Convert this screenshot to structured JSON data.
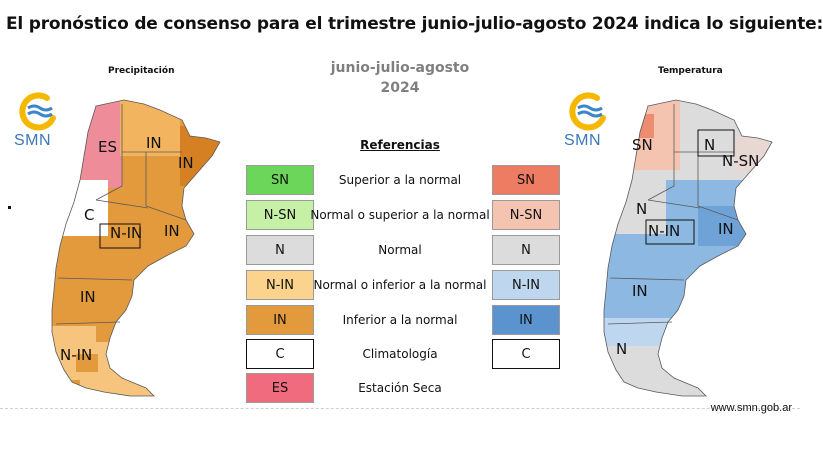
{
  "headline": "El pronóstico de consenso para el trimestre junio-julio-agosto 2024 indica lo siguiente:",
  "left_map": {
    "title": "Precipitación",
    "logo_text": "SMN",
    "labels": [
      "ES",
      "IN",
      "IN",
      "C",
      "N-IN",
      "IN",
      "IN",
      "N-IN"
    ]
  },
  "right_map": {
    "title": "Temperatura",
    "logo_text": "SMN",
    "labels": [
      "SN",
      "N",
      "N-SN",
      "N",
      "N-IN",
      "IN",
      "IN",
      "N"
    ]
  },
  "period": {
    "line1": "junio-julio-agosto",
    "line2": "2024"
  },
  "references": {
    "title": "Referencias",
    "rows": [
      {
        "precip_code": "SN",
        "precip_color": "#6cd65a",
        "description": "Superior a la normal",
        "temp_code": "SN",
        "temp_color": "#ee7c62"
      },
      {
        "precip_code": "N-SN",
        "precip_color": "#c6f0a6",
        "description": "Normal o superior a la normal",
        "temp_code": "N-SN",
        "temp_color": "#f5c4b0"
      },
      {
        "precip_code": "N",
        "precip_color": "#dcdcdc",
        "description": "Normal",
        "temp_code": "N",
        "temp_color": "#dcdcdc"
      },
      {
        "precip_code": "N-IN",
        "precip_color": "#fbd38c",
        "description": "Normal o inferior a la normal",
        "temp_code": "N-IN",
        "temp_color": "#bed7ee"
      },
      {
        "precip_code": "IN",
        "precip_color": "#e29a3c",
        "description": "Inferior a la normal",
        "temp_code": "IN",
        "temp_color": "#5b93cf"
      },
      {
        "precip_code": "C",
        "precip_color": "#ffffff",
        "description": "Climatología",
        "temp_code": "C",
        "temp_color": "#ffffff"
      },
      {
        "precip_code": "ES",
        "precip_color": "#ef6b7d",
        "description": "Estación Seca"
      }
    ]
  },
  "website": "www.smn.gob.ar"
}
